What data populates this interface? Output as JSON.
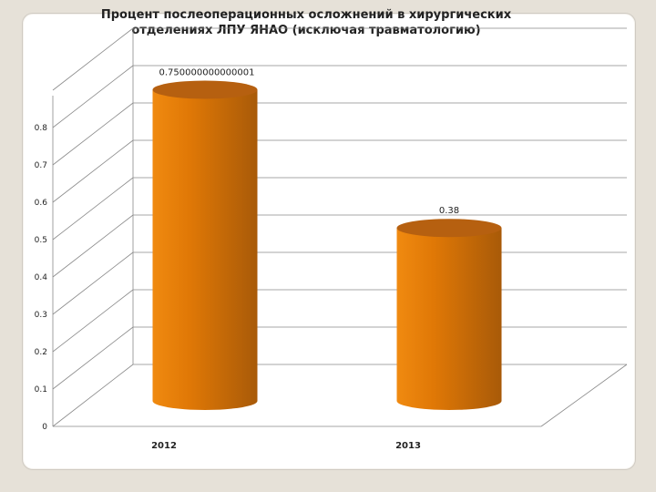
{
  "colors": {
    "bar_light": "#f08a10",
    "bar_mid": "#e07806",
    "bar_dark": "#a85a08",
    "bar_top": "#b66010",
    "grid": "#8a8a8a"
  },
  "chart_data": {
    "type": "bar",
    "style": "3d-cylinder",
    "title_lines": [
      "Процент послеоперационных осложнений в хирургических",
      "отделениях ЛПУ ЯНАО (исключая травматологию)"
    ],
    "categories": [
      "2012",
      "2013"
    ],
    "values": [
      0.75,
      0.38
    ],
    "data_labels": [
      "0.750000000000001",
      "0.38"
    ],
    "ylim": [
      0,
      0.9
    ],
    "yticks": [
      "0",
      "0.1",
      "0.2",
      "0.3",
      "0.4",
      "0.5",
      "0.6",
      "0.7",
      "0.8"
    ],
    "grid": true,
    "legend": "none"
  }
}
